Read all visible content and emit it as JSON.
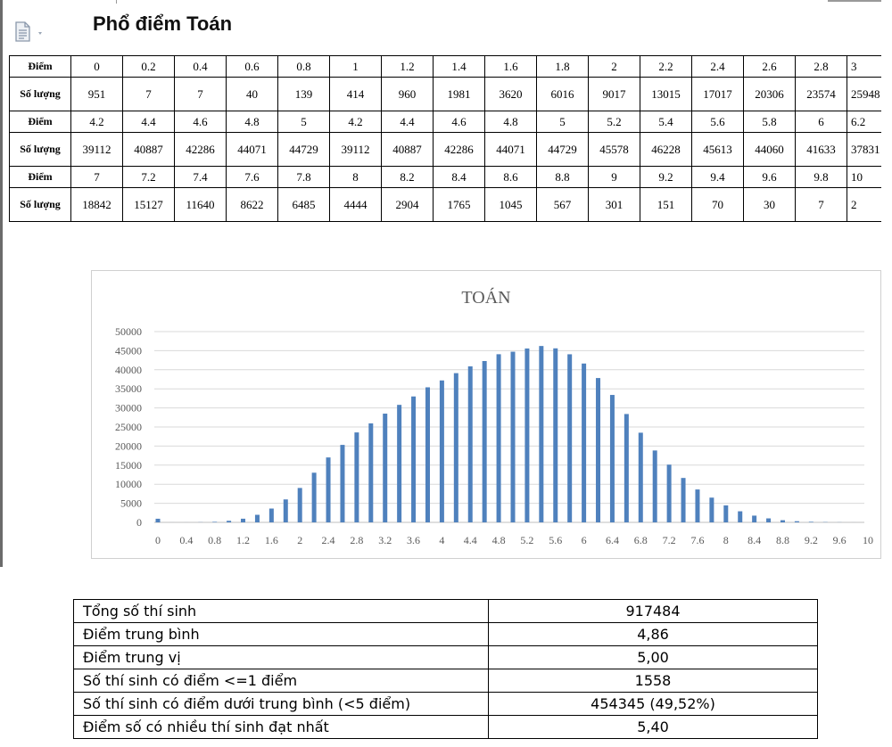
{
  "document": {
    "title": "Phổ điểm Toán",
    "icon": "document-icon"
  },
  "score_table": {
    "header_diem": "Điểm",
    "header_soluong": "Số lượng",
    "rows": [
      {
        "scores": [
          "0",
          "0.2",
          "0.4",
          "0.6",
          "0.8",
          "1",
          "1.2",
          "1.4",
          "1.6",
          "1.8",
          "2",
          "2.2",
          "2.4",
          "2.6",
          "2.8",
          "3"
        ],
        "counts": [
          "951",
          "7",
          "7",
          "40",
          "139",
          "414",
          "960",
          "1981",
          "3620",
          "6016",
          "9017",
          "13015",
          "17017",
          "20306",
          "23574",
          "25948"
        ]
      },
      {
        "scores": [
          "4.2",
          "4.4",
          "4.6",
          "4.8",
          "5",
          "4.2",
          "4.4",
          "4.6",
          "4.8",
          "5",
          "5.2",
          "5.4",
          "5.6",
          "5.8",
          "6",
          "6.2"
        ],
        "counts": [
          "39112",
          "40887",
          "42286",
          "44071",
          "44729",
          "39112",
          "40887",
          "42286",
          "44071",
          "44729",
          "45578",
          "46228",
          "45613",
          "44060",
          "41633",
          "37831"
        ]
      },
      {
        "scores": [
          "7",
          "7.2",
          "7.4",
          "7.6",
          "7.8",
          "8",
          "8.2",
          "8.4",
          "8.6",
          "8.8",
          "9",
          "9.2",
          "9.4",
          "9.6",
          "9.8",
          "10"
        ],
        "counts": [
          "18842",
          "15127",
          "11640",
          "8622",
          "6485",
          "4444",
          "2904",
          "1765",
          "1045",
          "567",
          "301",
          "151",
          "70",
          "30",
          "7",
          "2"
        ]
      }
    ]
  },
  "chart_data": {
    "type": "bar",
    "title": "TOÁN",
    "x_tick_labels": [
      "0",
      "0.4",
      "0.8",
      "1.2",
      "1.6",
      "2",
      "2.4",
      "2.8",
      "3.2",
      "3.6",
      "4",
      "4.4",
      "4.8",
      "5.2",
      "5.6",
      "6",
      "6.4",
      "6.8",
      "7.2",
      "7.6",
      "8",
      "8.4",
      "8.8",
      "9.2",
      "9.6",
      "10"
    ],
    "y_tick_labels": [
      "0",
      "5000",
      "10000",
      "15000",
      "20000",
      "25000",
      "30000",
      "35000",
      "40000",
      "45000",
      "50000"
    ],
    "ylim": [
      0,
      50000
    ],
    "grid": true,
    "bar_color": "#4f81bd",
    "x": [
      0,
      0.2,
      0.4,
      0.6,
      0.8,
      1,
      1.2,
      1.4,
      1.6,
      1.8,
      2,
      2.2,
      2.4,
      2.6,
      2.8,
      3,
      3.2,
      3.4,
      3.6,
      3.8,
      4,
      4.2,
      4.4,
      4.6,
      4.8,
      5,
      5.2,
      5.4,
      5.6,
      5.8,
      6,
      6.2,
      6.4,
      6.6,
      6.8,
      7,
      7.2,
      7.4,
      7.6,
      7.8,
      8,
      8.2,
      8.4,
      8.6,
      8.8,
      9,
      9.2,
      9.4,
      9.6,
      9.8,
      10
    ],
    "values": [
      951,
      7,
      7,
      40,
      139,
      414,
      960,
      1981,
      3620,
      6016,
      9017,
      13015,
      17017,
      20306,
      23574,
      25948,
      28500,
      30800,
      33000,
      35400,
      37200,
      39112,
      40887,
      42286,
      44071,
      44729,
      45578,
      46228,
      45613,
      44060,
      41633,
      37831,
      33400,
      28400,
      23500,
      18842,
      15127,
      11640,
      8622,
      6485,
      4444,
      2904,
      1765,
      1045,
      567,
      301,
      151,
      70,
      30,
      7,
      2
    ]
  },
  "stats": {
    "rows": [
      {
        "label": "Tổng số thí sinh",
        "value": "917484"
      },
      {
        "label": "Điểm trung bình",
        "value": "4,86"
      },
      {
        "label": "Điểm trung vị",
        "value": "5,00"
      },
      {
        "label": "Số thí sinh có điểm <=1 điểm",
        "value": "1558"
      },
      {
        "label": "Số thí sinh có điểm dưới trung bình (<5 điểm)",
        "value": "454345 (49,52%)"
      },
      {
        "label": "Điểm số có nhiều thí sinh đạt nhất",
        "value": "5,40"
      }
    ]
  }
}
